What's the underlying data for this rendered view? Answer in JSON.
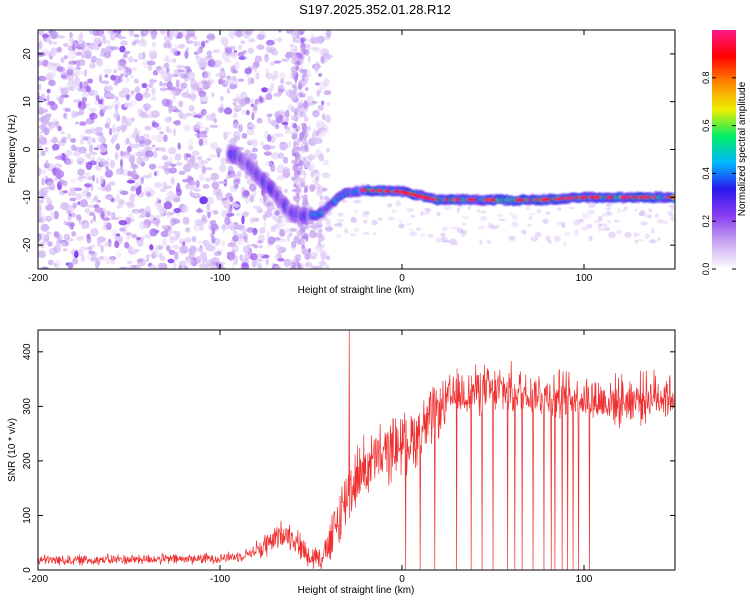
{
  "figure": {
    "title": "S197.2025.352.01.28.R12"
  },
  "chart_data": [
    {
      "type": "heatmap",
      "xlabel": "Height of straight line (km)",
      "ylabel": "Frequency (Hz)",
      "xlim": [
        -200,
        150
      ],
      "ylim": [
        -25,
        25
      ],
      "xticks": [
        -200,
        -100,
        0,
        100
      ],
      "yticks": [
        -20,
        -10,
        0,
        10,
        20
      ],
      "colorbar": {
        "label": "Normalized spectral amplitude",
        "range": [
          0,
          1
        ],
        "ticks": [
          "0.0",
          "0.2",
          "0.4",
          "0.6",
          "0.8"
        ],
        "colors": [
          "#ffffff",
          "#c8a6f0",
          "#8a3ef0",
          "#2a18ee",
          "#00b8ff",
          "#00ee66",
          "#eeee00",
          "#ff8800",
          "#ff0000",
          "#ff1a88"
        ]
      },
      "ridge": {
        "description_points": [
          [
            -92,
            -1
          ],
          [
            -85,
            -3
          ],
          [
            -78,
            -6
          ],
          [
            -70,
            -9
          ],
          [
            -62,
            -13
          ],
          [
            -55,
            -14
          ],
          [
            -45,
            -13.5
          ],
          [
            -38,
            -11
          ],
          [
            -30,
            -9
          ],
          [
            -20,
            -8.5
          ],
          [
            0,
            -8.8
          ],
          [
            20,
            -10.5
          ],
          [
            40,
            -10.5
          ],
          [
            60,
            -10.6
          ],
          [
            80,
            -10.5
          ],
          [
            100,
            -10
          ],
          [
            120,
            -10
          ],
          [
            150,
            -10
          ]
        ]
      }
    },
    {
      "type": "line",
      "xlabel": "Height of straight line (km)",
      "ylabel": "SNR (10 * v/v)",
      "xlim": [
        -200,
        150
      ],
      "ylim": [
        0,
        440
      ],
      "xticks": [
        -200,
        -100,
        0,
        100
      ],
      "yticks": [
        0,
        100,
        200,
        300,
        400
      ],
      "color": "#f03030",
      "series": [
        {
          "name": "SNR",
          "x": [
            -200,
            -180,
            -160,
            -140,
            -120,
            -100,
            -90,
            -80,
            -70,
            -65,
            -60,
            -55,
            -50,
            -45,
            -40,
            -35,
            -30,
            -25,
            -20,
            -15,
            -10,
            -5,
            0,
            5,
            10,
            15,
            20,
            25,
            30,
            40,
            50,
            60,
            70,
            80,
            90,
            100,
            110,
            120,
            130,
            140,
            150
          ],
          "values": [
            18,
            18,
            19,
            20,
            20,
            22,
            25,
            35,
            55,
            70,
            60,
            40,
            25,
            25,
            40,
            90,
            140,
            170,
            190,
            200,
            210,
            225,
            235,
            240,
            255,
            270,
            290,
            310,
            320,
            330,
            330,
            330,
            325,
            320,
            320,
            315,
            310,
            310,
            315,
            320,
            320
          ]
        }
      ],
      "spike": {
        "x": -29,
        "value": 440
      },
      "dropouts_x": [
        2,
        10,
        18,
        30,
        38,
        44,
        50,
        58,
        62,
        66,
        72,
        78,
        82,
        84,
        88,
        91,
        94,
        97,
        103
      ]
    }
  ]
}
